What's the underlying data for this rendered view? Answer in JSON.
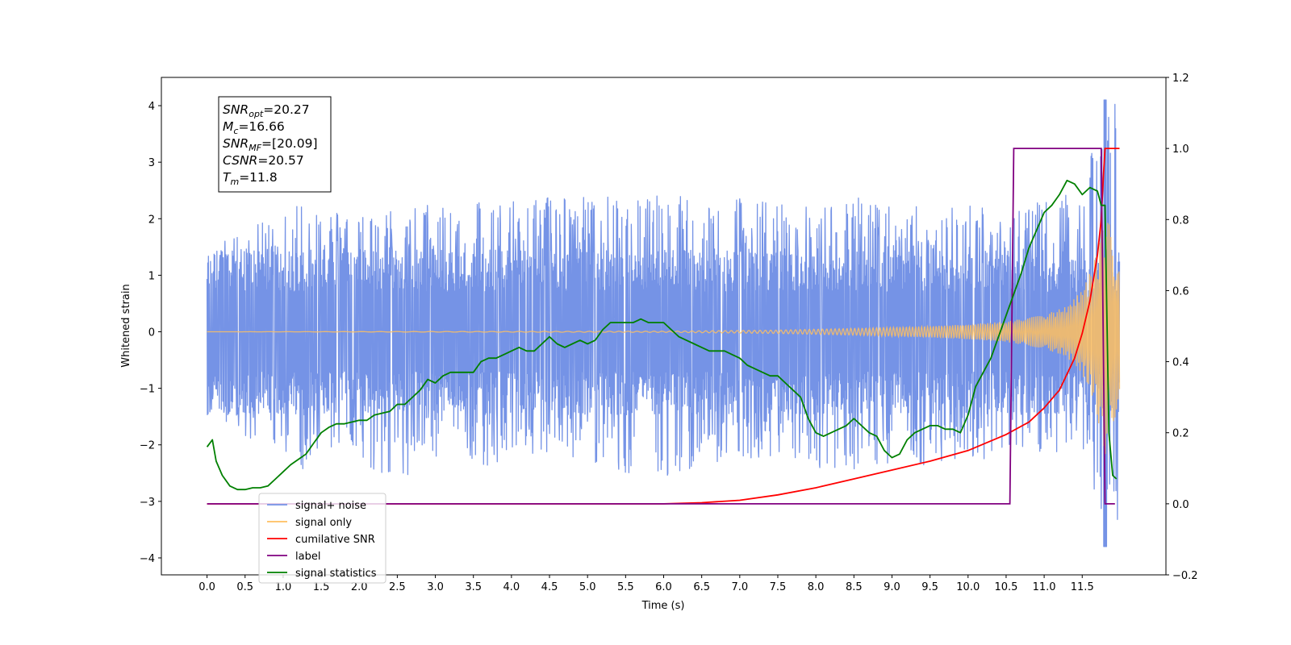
{
  "chart_data": {
    "type": "line",
    "title": "",
    "xlabel": "Time (s)",
    "ylabel": "Whitened strain",
    "ylabel_right": "",
    "xlim": [
      -0.6,
      12.6
    ],
    "ylim": [
      -4.3,
      4.5
    ],
    "ylim_right": [
      -0.2,
      1.2
    ],
    "x_ticks": [
      "0.0",
      "0.5",
      "1.0",
      "1.5",
      "2.0",
      "2.5",
      "3.0",
      "3.5",
      "4.0",
      "4.5",
      "5.0",
      "5.5",
      "6.0",
      "6.5",
      "7.0",
      "7.5",
      "8.0",
      "8.5",
      "9.0",
      "9.5",
      "10.0",
      "10.5",
      "11.0",
      "11.5"
    ],
    "y_ticks_left": [
      "4",
      "3",
      "2",
      "1",
      "0",
      "−1",
      "−2",
      "−3",
      "−4"
    ],
    "y_ticks_right": [
      "1.2",
      "1.0",
      "0.8",
      "0.6",
      "0.4",
      "0.2",
      "0.0",
      "−0.2"
    ],
    "grid": false,
    "legend": {
      "placement": "lower-left",
      "entries": [
        {
          "label": "signal+ noise",
          "color": "#7593e6"
        },
        {
          "label": "signal only",
          "color": "#ffbf5f"
        },
        {
          "label": "cumilative SNR",
          "color": "#ff0000"
        },
        {
          "label": "label",
          "color": "#800080"
        },
        {
          "label": "signal statistics",
          "color": "#008000"
        }
      ]
    },
    "annotation": {
      "lines": [
        {
          "var": "SNR",
          "sub": "opt",
          "rest": "=20.27"
        },
        {
          "var": "M",
          "sub": "c",
          "rest": "=16.66"
        },
        {
          "var": "SNR",
          "sub": "MF",
          "rest": "=[20.09]"
        },
        {
          "var": "CSNR",
          "sub": "",
          "rest": "=20.57"
        },
        {
          "var": "T",
          "sub": "m",
          "rest": "=11.8"
        }
      ]
    },
    "series": [
      {
        "name": "signal+ noise",
        "axis": "left",
        "color": "#7593e6",
        "x_range": [
          0.0,
          11.99
        ],
        "noise_band": [
          -1.4,
          1.4
        ],
        "peak_envelope": {
          "x": [
            0.0,
            0.5,
            1.0,
            1.3,
            1.5,
            2.0,
            2.5,
            3.0,
            3.5,
            4.0,
            4.5,
            5.0,
            5.5,
            6.0,
            6.5,
            7.0,
            7.5,
            8.0,
            8.5,
            9.0,
            9.5,
            10.0,
            10.5,
            11.0,
            11.5,
            11.8
          ],
          "max": [
            1.5,
            1.8,
            2.1,
            2.6,
            2.2,
            2.1,
            2.2,
            2.3,
            2.4,
            2.3,
            2.5,
            2.4,
            2.4,
            2.5,
            2.4,
            2.4,
            2.3,
            2.2,
            2.4,
            2.3,
            2.2,
            2.3,
            2.2,
            2.3,
            2.5,
            4.1
          ],
          "min": [
            -1.5,
            -1.9,
            -2.2,
            -2.6,
            -2.1,
            -2.3,
            -2.7,
            -2.2,
            -2.4,
            -2.3,
            -2.2,
            -2.3,
            -2.5,
            -2.7,
            -2.3,
            -2.3,
            -2.2,
            -2.4,
            -2.5,
            -2.3,
            -2.4,
            -2.3,
            -2.2,
            -2.3,
            -2.2,
            -3.8
          ]
        }
      },
      {
        "name": "signal only",
        "axis": "left",
        "color": "#ffbf5f",
        "envelope": {
          "x": [
            0.0,
            6.0,
            7.5,
            8.5,
            9.5,
            10.0,
            10.5,
            11.0,
            11.3,
            11.5,
            11.65,
            11.75,
            11.8,
            11.99
          ],
          "amp": [
            0.0,
            0.01,
            0.03,
            0.06,
            0.1,
            0.13,
            0.18,
            0.3,
            0.45,
            0.75,
            1.2,
            1.9,
            2.2,
            1.2
          ]
        }
      },
      {
        "name": "cumilative SNR",
        "axis": "right",
        "color": "#ff0000",
        "x": [
          0.0,
          6.0,
          6.5,
          7.0,
          7.5,
          8.0,
          8.5,
          9.0,
          9.5,
          10.0,
          10.5,
          10.8,
          11.0,
          11.2,
          11.4,
          11.5,
          11.6,
          11.7,
          11.75,
          11.78,
          11.8,
          11.85,
          11.99
        ],
        "y": [
          0.0,
          0.0,
          0.003,
          0.01,
          0.025,
          0.045,
          0.07,
          0.095,
          0.12,
          0.15,
          0.195,
          0.23,
          0.27,
          0.32,
          0.41,
          0.48,
          0.57,
          0.7,
          0.8,
          0.93,
          1.0,
          1.0,
          1.0
        ]
      },
      {
        "name": "label",
        "axis": "right",
        "color": "#800080",
        "x": [
          0.0,
          10.55,
          10.6,
          11.75,
          11.8,
          11.93
        ],
        "y": [
          0.0,
          0.0,
          1.0,
          1.0,
          0.0,
          0.0
        ]
      },
      {
        "name": "signal statistics",
        "axis": "right",
        "color": "#008000",
        "x": [
          0.0,
          0.07,
          0.12,
          0.2,
          0.3,
          0.4,
          0.5,
          0.6,
          0.7,
          0.8,
          0.9,
          1.0,
          1.1,
          1.2,
          1.3,
          1.4,
          1.5,
          1.6,
          1.7,
          1.8,
          1.9,
          2.0,
          2.1,
          2.2,
          2.3,
          2.4,
          2.5,
          2.6,
          2.7,
          2.8,
          2.9,
          3.0,
          3.1,
          3.2,
          3.3,
          3.4,
          3.5,
          3.6,
          3.7,
          3.8,
          3.9,
          4.0,
          4.1,
          4.2,
          4.3,
          4.4,
          4.5,
          4.6,
          4.7,
          4.8,
          4.9,
          5.0,
          5.1,
          5.2,
          5.3,
          5.4,
          5.5,
          5.6,
          5.7,
          5.8,
          5.9,
          6.0,
          6.1,
          6.2,
          6.3,
          6.4,
          6.5,
          6.6,
          6.7,
          6.8,
          6.9,
          7.0,
          7.1,
          7.2,
          7.3,
          7.4,
          7.5,
          7.6,
          7.7,
          7.8,
          7.9,
          8.0,
          8.1,
          8.2,
          8.3,
          8.4,
          8.5,
          8.6,
          8.7,
          8.8,
          8.9,
          9.0,
          9.1,
          9.2,
          9.3,
          9.4,
          9.5,
          9.6,
          9.7,
          9.8,
          9.9,
          10.0,
          10.1,
          10.2,
          10.3,
          10.4,
          10.5,
          10.6,
          10.7,
          10.8,
          10.9,
          11.0,
          11.1,
          11.2,
          11.3,
          11.4,
          11.5,
          11.6,
          11.7,
          11.75,
          11.8,
          11.85,
          11.9,
          11.95
        ],
        "y": [
          0.16,
          0.18,
          0.12,
          0.08,
          0.05,
          0.04,
          0.04,
          0.045,
          0.045,
          0.05,
          0.07,
          0.09,
          0.11,
          0.125,
          0.14,
          0.17,
          0.2,
          0.215,
          0.225,
          0.225,
          0.23,
          0.235,
          0.235,
          0.25,
          0.255,
          0.26,
          0.28,
          0.28,
          0.3,
          0.32,
          0.35,
          0.34,
          0.36,
          0.37,
          0.37,
          0.37,
          0.37,
          0.4,
          0.41,
          0.41,
          0.42,
          0.43,
          0.44,
          0.43,
          0.43,
          0.45,
          0.47,
          0.45,
          0.44,
          0.45,
          0.46,
          0.45,
          0.46,
          0.49,
          0.51,
          0.51,
          0.51,
          0.51,
          0.52,
          0.51,
          0.51,
          0.51,
          0.49,
          0.47,
          0.46,
          0.45,
          0.44,
          0.43,
          0.43,
          0.43,
          0.42,
          0.41,
          0.39,
          0.38,
          0.37,
          0.36,
          0.36,
          0.34,
          0.32,
          0.3,
          0.24,
          0.2,
          0.19,
          0.2,
          0.21,
          0.22,
          0.24,
          0.22,
          0.2,
          0.19,
          0.15,
          0.13,
          0.14,
          0.18,
          0.2,
          0.21,
          0.22,
          0.22,
          0.21,
          0.21,
          0.2,
          0.25,
          0.33,
          0.37,
          0.41,
          0.47,
          0.53,
          0.59,
          0.65,
          0.72,
          0.77,
          0.82,
          0.84,
          0.87,
          0.91,
          0.9,
          0.87,
          0.89,
          0.88,
          0.84,
          0.84,
          0.2,
          0.08,
          0.07
        ]
      }
    ]
  }
}
